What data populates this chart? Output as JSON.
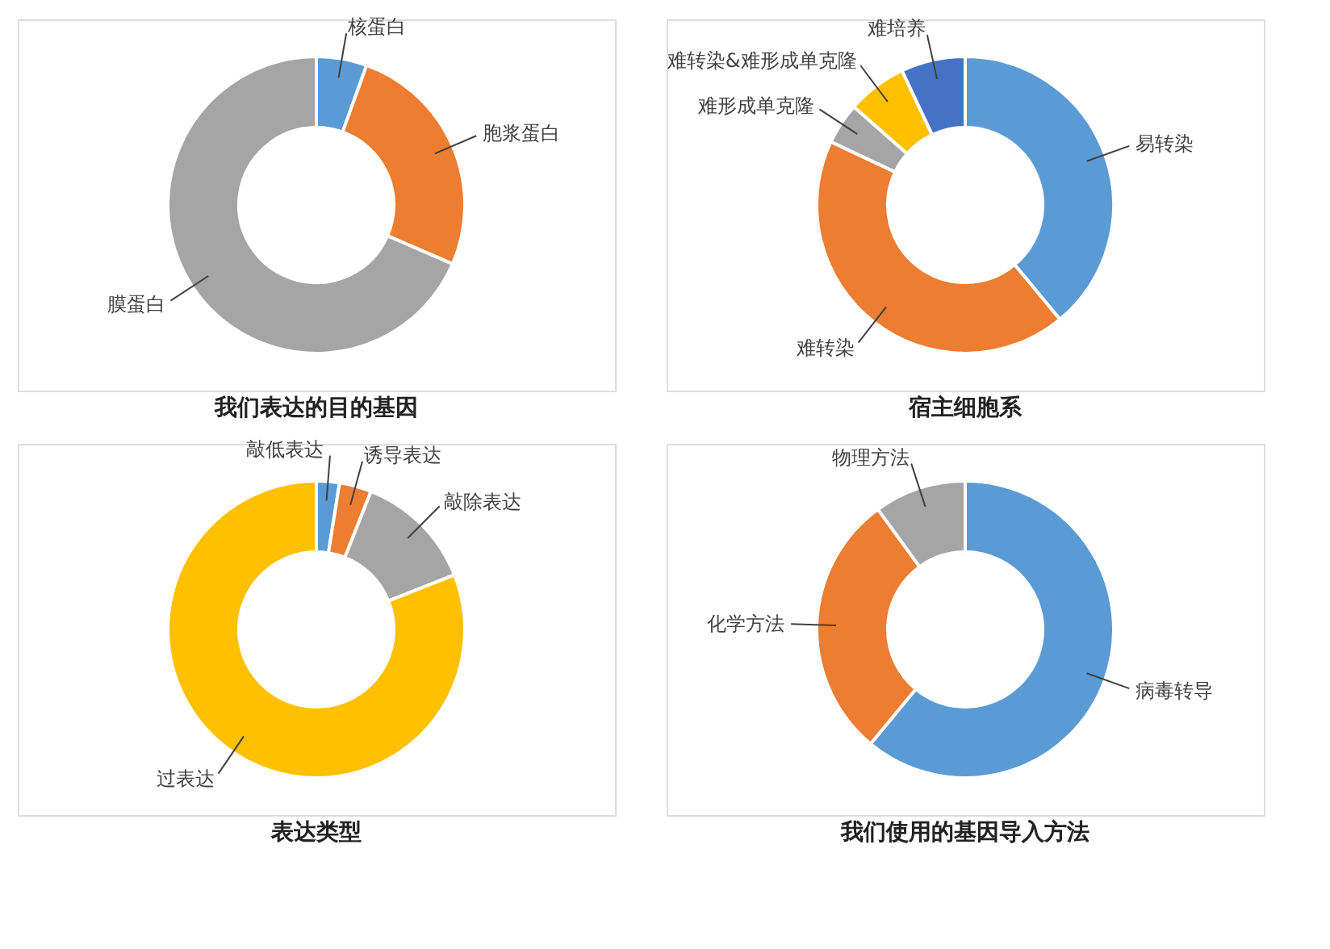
{
  "chart_data": [
    {
      "type": "donut",
      "title": "我们表达的目的基因",
      "categories": [
        "核蛋白",
        "胞浆蛋白",
        "膜蛋白"
      ],
      "values": [
        5.5,
        26,
        68.5
      ],
      "colors": [
        "#5b9bd5",
        "#ed7d31",
        "#a5a5a5"
      ]
    },
    {
      "type": "donut",
      "title": "宿主细胞系",
      "categories": [
        "易转染",
        "难转染",
        "难形成单克隆",
        "难转染&难形成单克隆",
        "难培养"
      ],
      "values": [
        39,
        43,
        4.5,
        6.5,
        7
      ],
      "colors": [
        "#5b9bd5",
        "#ed7d31",
        "#a5a5a5",
        "#ffc000",
        "#4472c4"
      ]
    },
    {
      "type": "donut",
      "title": "表达类型",
      "categories": [
        "敲低表达",
        "诱导表达",
        "敲除表达",
        "过表达"
      ],
      "values": [
        2.5,
        3.5,
        13,
        81
      ],
      "colors": [
        "#5b9bd5",
        "#ed7d31",
        "#a5a5a5",
        "#ffc000"
      ]
    },
    {
      "type": "donut",
      "title": "我们使用的基因导入方法",
      "categories": [
        "病毒转导",
        "化学方法",
        "物理方法"
      ],
      "values": [
        61,
        29,
        10
      ],
      "colors": [
        "#5b9bd5",
        "#ed7d31",
        "#a5a5a5"
      ]
    }
  ]
}
